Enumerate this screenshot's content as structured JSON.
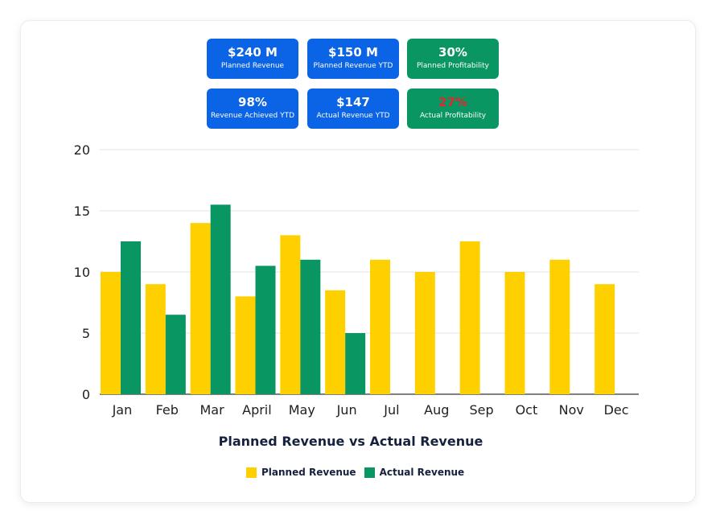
{
  "kpis": [
    {
      "value": "$240 M",
      "label": "Planned Revenue",
      "color": "#0b63e5"
    },
    {
      "value": "$150 M",
      "label": "Planned Revenue YTD",
      "color": "#0b63e5"
    },
    {
      "value": "30%",
      "label": "Planned Profitability",
      "color": "#0a9663"
    },
    {
      "value": "98%",
      "label": "Revenue Achieved YTD",
      "color": "#0b63e5"
    },
    {
      "value": "$147",
      "label": "Actual Revenue YTD",
      "color": "#0b63e5"
    },
    {
      "value": "27%",
      "label": "Actual Profitability",
      "color": "#0a9663",
      "value_color": "#e0282e"
    }
  ],
  "chart_data": {
    "type": "bar",
    "title": "Planned Revenue vs Actual Revenue",
    "xlabel": "",
    "ylabel": "",
    "ylim": [
      0,
      20
    ],
    "yticks": [
      0,
      5,
      10,
      15,
      20
    ],
    "grid": true,
    "legend_position": "bottom",
    "categories": [
      "Jan",
      "Feb",
      "Mar",
      "April",
      "May",
      "Jun",
      "Jul",
      "Aug",
      "Sep",
      "Oct",
      "Nov",
      "Dec"
    ],
    "series": [
      {
        "name": "Planned Revenue",
        "color": "#ffd000",
        "values": [
          10,
          9,
          14,
          8,
          13,
          8.5,
          11,
          10,
          12.5,
          10,
          11,
          9
        ]
      },
      {
        "name": "Actual Revenue",
        "color": "#0a9663",
        "values": [
          12.5,
          6.5,
          15.5,
          10.5,
          11,
          5,
          null,
          null,
          null,
          null,
          null,
          null
        ]
      }
    ]
  }
}
